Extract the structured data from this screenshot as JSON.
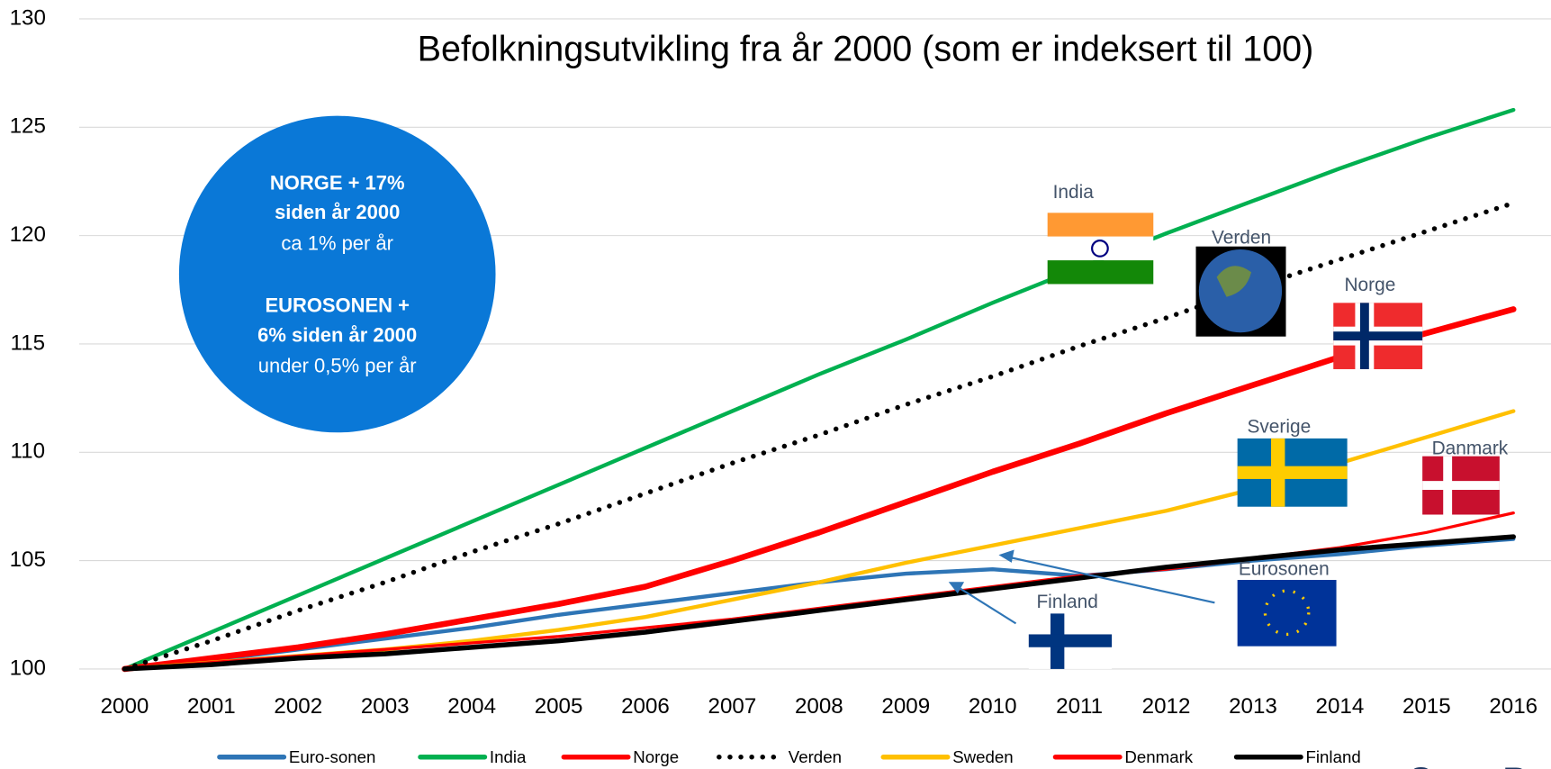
{
  "chart_data": {
    "type": "line",
    "title": "Befolkningsutvikling fra år 2000 (som er indeksert til 100)",
    "categories": [
      "2000",
      "2001",
      "2002",
      "2003",
      "2004",
      "2005",
      "2006",
      "2007",
      "2008",
      "2009",
      "2010",
      "2011",
      "2012",
      "2013",
      "2014",
      "2015",
      "2016"
    ],
    "ylim": [
      100,
      130
    ],
    "yticks": [
      100,
      105,
      110,
      115,
      120,
      125,
      130
    ],
    "grid": true,
    "series": [
      {
        "name": "Euro-sonen",
        "color": "#2e75b6",
        "width": 4,
        "values": [
          100,
          100.4,
          100.9,
          101.4,
          101.9,
          102.5,
          103.0,
          103.5,
          104.0,
          104.4,
          104.6,
          104.3,
          104.6,
          105.0,
          105.3,
          105.7,
          106.0
        ]
      },
      {
        "name": "India",
        "color": "#00b050",
        "width": 4,
        "values": [
          100,
          101.7,
          103.4,
          105.1,
          106.8,
          108.5,
          110.2,
          111.9,
          113.6,
          115.2,
          116.9,
          118.5,
          120.1,
          121.6,
          123.1,
          124.5,
          125.8
        ]
      },
      {
        "name": "Norge",
        "color": "#ff0000",
        "width": 6,
        "values": [
          100,
          100.5,
          101.0,
          101.6,
          102.3,
          103.0,
          103.8,
          105.0,
          106.3,
          107.7,
          109.1,
          110.4,
          111.8,
          113.1,
          114.4,
          115.5,
          116.6
        ]
      },
      {
        "name": "Verden",
        "color": "#000000",
        "width": 5,
        "dash": "dotted",
        "values": [
          100,
          101.3,
          102.7,
          104.0,
          105.4,
          106.7,
          108.1,
          109.5,
          110.8,
          112.2,
          113.5,
          114.9,
          116.2,
          117.6,
          118.9,
          120.2,
          121.5
        ]
      },
      {
        "name": "Sweden",
        "color": "#ffc000",
        "width": 4,
        "values": [
          100,
          100.3,
          100.6,
          100.9,
          101.3,
          101.8,
          102.4,
          103.2,
          104.0,
          104.9,
          105.7,
          106.5,
          107.3,
          108.3,
          109.5,
          110.7,
          111.9
        ]
      },
      {
        "name": "Denmark",
        "color": "#ff0000",
        "width": 3,
        "values": [
          100,
          100.3,
          100.6,
          100.9,
          101.2,
          101.5,
          101.9,
          102.3,
          102.8,
          103.3,
          103.8,
          104.3,
          104.6,
          105.1,
          105.6,
          106.3,
          107.2
        ]
      },
      {
        "name": "Finland",
        "color": "#000000",
        "width": 5,
        "values": [
          100,
          100.2,
          100.5,
          100.7,
          101.0,
          101.3,
          101.7,
          102.2,
          102.7,
          103.2,
          103.7,
          104.2,
          104.7,
          105.1,
          105.5,
          105.8,
          106.1
        ]
      }
    ],
    "annotations": {
      "circle_color": "#0a78d7",
      "circle_lines": [
        {
          "text": "NORGE + 17%",
          "bold": true
        },
        {
          "text": "siden år 2000",
          "bold": true
        },
        {
          "text": "ca 1% per år",
          "bold": false
        },
        {
          "text": "EUROSONEN +",
          "bold": true
        },
        {
          "text": "6% siden år 2000",
          "bold": true
        },
        {
          "text": "under 0,5% per år",
          "bold": false
        }
      ],
      "flag_labels": [
        "India",
        "Verden",
        "Norge",
        "Sverige",
        "Danmark",
        "Eurosonen",
        "Finland"
      ],
      "logo": "SpareBa"
    }
  }
}
